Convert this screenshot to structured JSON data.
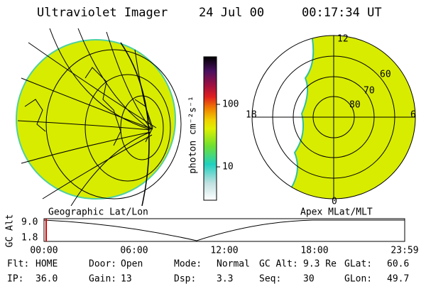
{
  "header": {
    "title": "Ultraviolet Imager",
    "date": "24 Jul 00",
    "time": "00:17:34 UT"
  },
  "geo_map": {
    "label": "Geographic Lat/Lon"
  },
  "colorbar": {
    "label": "photon cm⁻²s⁻¹",
    "ticks": [
      "100",
      "10"
    ]
  },
  "polar_map": {
    "label": "Apex MLat/MLT",
    "hours": [
      "12",
      "18",
      "6",
      "0"
    ],
    "latitudes": [
      "60",
      "70",
      "80"
    ]
  },
  "timeline": {
    "axis_label": "GC Alt",
    "yticks": [
      "9.0",
      "1.8"
    ],
    "xticks": [
      "00:00",
      "06:00",
      "12:00",
      "18:00",
      "23:59"
    ]
  },
  "footer": {
    "rows": [
      [
        [
          "Flt:",
          "HOME"
        ],
        [
          "Door:",
          "Open"
        ],
        [
          "Mode:",
          "Normal"
        ],
        [
          "GC Alt:",
          "9.3 Re"
        ],
        [
          "GLat:",
          "60.6"
        ]
      ],
      [
        [
          "IP:",
          "36.0"
        ],
        [
          "Gain:",
          "13"
        ],
        [
          "Dsp:",
          "3.3"
        ],
        [
          "Seq:",
          "30"
        ],
        [
          "GLon:",
          "49.7"
        ]
      ]
    ]
  }
}
